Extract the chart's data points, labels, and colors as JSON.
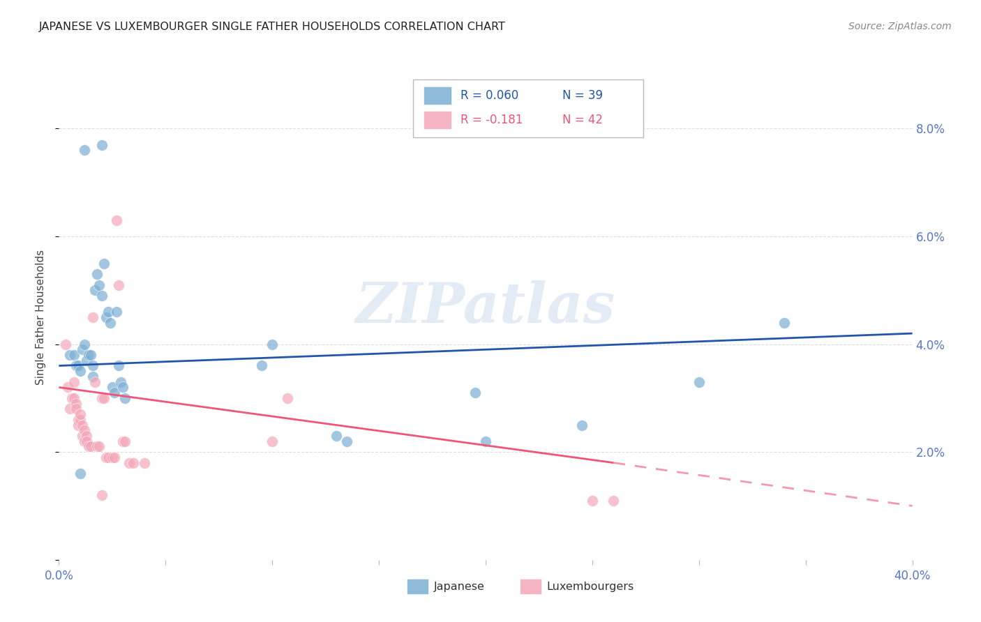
{
  "title": "JAPANESE VS LUXEMBOURGER SINGLE FATHER HOUSEHOLDS CORRELATION CHART",
  "source": "Source: ZipAtlas.com",
  "ylabel": "Single Father Households",
  "watermark": "ZIPatlas",
  "xlim": [
    0.0,
    0.4
  ],
  "ylim": [
    0.0,
    0.09
  ],
  "yticks": [
    0.0,
    0.02,
    0.04,
    0.06,
    0.08
  ],
  "ytick_labels": [
    "",
    "2.0%",
    "4.0%",
    "6.0%",
    "8.0%"
  ],
  "xticks": [
    0.0,
    0.05,
    0.1,
    0.15,
    0.2,
    0.25,
    0.3,
    0.35,
    0.4
  ],
  "xtick_labels": [
    "0.0%",
    "",
    "",
    "",
    "",
    "",
    "",
    "",
    "40.0%"
  ],
  "japanese_color": "#7BAFD4",
  "lux_color": "#F4A7B9",
  "trend_japanese_color": "#2255AA",
  "trend_lux_color": "#EE5577",
  "axis_color": "#5577CC",
  "title_color": "#222222",
  "source_color": "#888888",
  "grid_color": "#DDDDDD",
  "japanese_trend": [
    0.0,
    0.4,
    0.036,
    0.042
  ],
  "lux_trend_solid": [
    0.0,
    0.26,
    0.032,
    0.018
  ],
  "lux_trend_dashed": [
    0.26,
    0.4,
    0.018,
    0.01
  ],
  "japanese_points": [
    [
      0.012,
      0.076
    ],
    [
      0.02,
      0.077
    ],
    [
      0.005,
      0.038
    ],
    [
      0.007,
      0.038
    ],
    [
      0.008,
      0.036
    ],
    [
      0.009,
      0.036
    ],
    [
      0.01,
      0.035
    ],
    [
      0.011,
      0.039
    ],
    [
      0.012,
      0.04
    ],
    [
      0.013,
      0.037
    ],
    [
      0.014,
      0.038
    ],
    [
      0.015,
      0.038
    ],
    [
      0.016,
      0.036
    ],
    [
      0.016,
      0.034
    ],
    [
      0.017,
      0.05
    ],
    [
      0.018,
      0.053
    ],
    [
      0.019,
      0.051
    ],
    [
      0.02,
      0.049
    ],
    [
      0.021,
      0.055
    ],
    [
      0.022,
      0.045
    ],
    [
      0.023,
      0.046
    ],
    [
      0.024,
      0.044
    ],
    [
      0.025,
      0.032
    ],
    [
      0.026,
      0.031
    ],
    [
      0.027,
      0.046
    ],
    [
      0.028,
      0.036
    ],
    [
      0.029,
      0.033
    ],
    [
      0.03,
      0.032
    ],
    [
      0.031,
      0.03
    ],
    [
      0.095,
      0.036
    ],
    [
      0.1,
      0.04
    ],
    [
      0.13,
      0.023
    ],
    [
      0.135,
      0.022
    ],
    [
      0.195,
      0.031
    ],
    [
      0.2,
      0.022
    ],
    [
      0.245,
      0.025
    ],
    [
      0.3,
      0.033
    ],
    [
      0.34,
      0.044
    ],
    [
      0.01,
      0.016
    ]
  ],
  "lux_points": [
    [
      0.003,
      0.04
    ],
    [
      0.004,
      0.032
    ],
    [
      0.005,
      0.028
    ],
    [
      0.006,
      0.03
    ],
    [
      0.007,
      0.03
    ],
    [
      0.007,
      0.033
    ],
    [
      0.008,
      0.029
    ],
    [
      0.008,
      0.028
    ],
    [
      0.009,
      0.026
    ],
    [
      0.009,
      0.025
    ],
    [
      0.01,
      0.026
    ],
    [
      0.01,
      0.027
    ],
    [
      0.011,
      0.025
    ],
    [
      0.011,
      0.023
    ],
    [
      0.012,
      0.024
    ],
    [
      0.012,
      0.022
    ],
    [
      0.013,
      0.023
    ],
    [
      0.013,
      0.022
    ],
    [
      0.014,
      0.021
    ],
    [
      0.015,
      0.021
    ],
    [
      0.016,
      0.045
    ],
    [
      0.017,
      0.033
    ],
    [
      0.018,
      0.021
    ],
    [
      0.019,
      0.021
    ],
    [
      0.02,
      0.03
    ],
    [
      0.021,
      0.03
    ],
    [
      0.022,
      0.019
    ],
    [
      0.023,
      0.019
    ],
    [
      0.025,
      0.019
    ],
    [
      0.026,
      0.019
    ],
    [
      0.027,
      0.063
    ],
    [
      0.028,
      0.051
    ],
    [
      0.03,
      0.022
    ],
    [
      0.031,
      0.022
    ],
    [
      0.033,
      0.018
    ],
    [
      0.035,
      0.018
    ],
    [
      0.04,
      0.018
    ],
    [
      0.1,
      0.022
    ],
    [
      0.107,
      0.03
    ],
    [
      0.02,
      0.012
    ],
    [
      0.25,
      0.011
    ],
    [
      0.26,
      0.011
    ]
  ]
}
